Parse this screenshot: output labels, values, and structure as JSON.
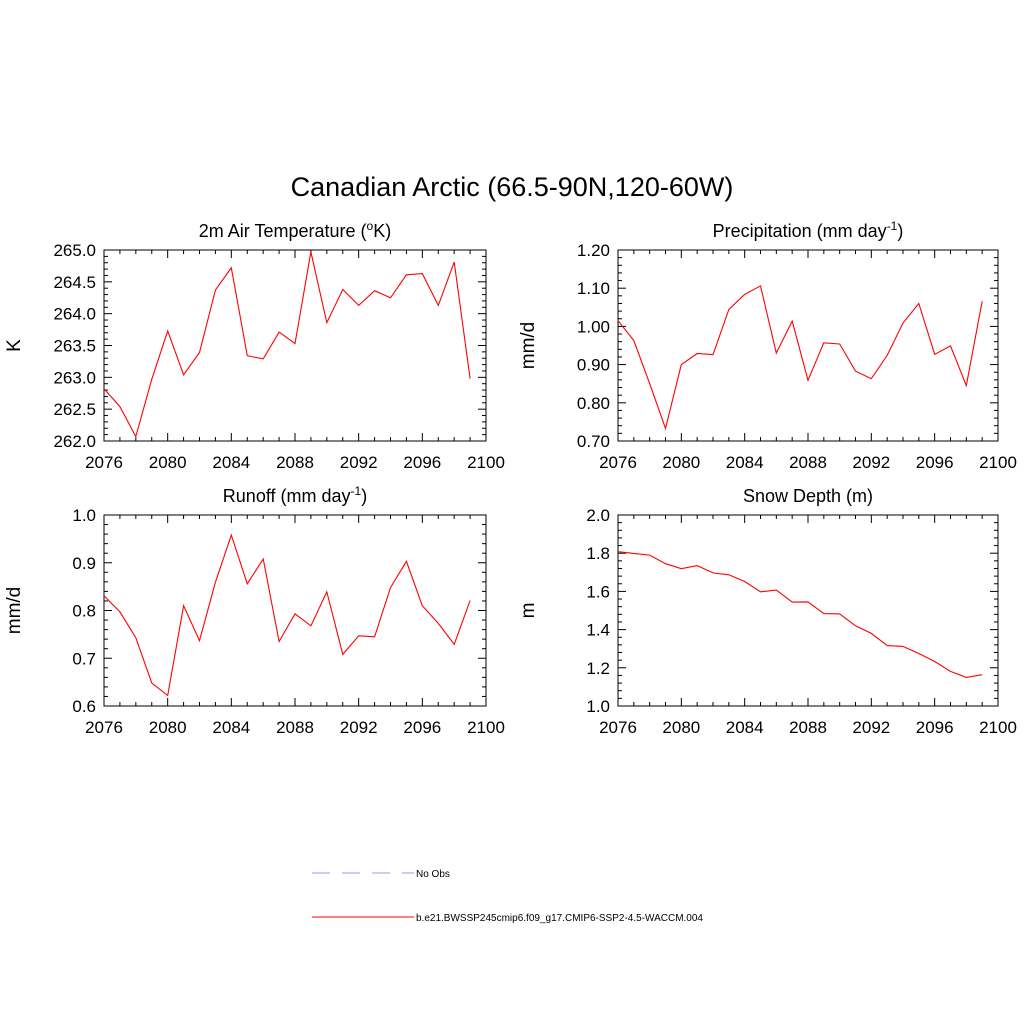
{
  "title": "Canadian Arctic (66.5-90N,120-60W)",
  "chart_data": [
    {
      "type": "line",
      "title_parts": [
        "2m Air Temperature (",
        "o",
        "K)"
      ],
      "ylabel": "K",
      "xlim": [
        2076,
        2100
      ],
      "ylim": [
        262.0,
        265.0
      ],
      "xticks": [
        "2076",
        "2080",
        "2084",
        "2088",
        "2092",
        "2096",
        "2100"
      ],
      "yticks": [
        "262.0",
        "262.5",
        "263.0",
        "263.5",
        "264.0",
        "264.5",
        "265.0"
      ],
      "series": [
        {
          "x": [
            2076,
            2077,
            2078,
            2079,
            2080,
            2081,
            2082,
            2083,
            2084,
            2085,
            2086,
            2087,
            2088,
            2089,
            2090,
            2091,
            2092,
            2093,
            2094,
            2095,
            2096,
            2097,
            2098,
            2099
          ],
          "y": [
            262.82,
            262.54,
            262.07,
            262.97,
            263.73,
            263.04,
            263.39,
            264.37,
            264.72,
            263.34,
            263.29,
            263.71,
            263.53,
            264.97,
            263.86,
            264.38,
            264.13,
            264.36,
            264.25,
            264.61,
            264.63,
            264.13,
            264.81,
            262.98
          ]
        }
      ]
    },
    {
      "type": "line",
      "title_parts": [
        "Precipitation (mm day",
        "-1",
        ")"
      ],
      "ylabel": "mm/d",
      "xlim": [
        2076,
        2100
      ],
      "ylim": [
        0.7,
        1.2
      ],
      "xticks": [
        "2076",
        "2080",
        "2084",
        "2088",
        "2092",
        "2096",
        "2100"
      ],
      "yticks": [
        "0.70",
        "0.80",
        "0.90",
        "1.00",
        "1.10",
        "1.20"
      ],
      "series": [
        {
          "x": [
            2076,
            2077,
            2078,
            2079,
            2080,
            2081,
            2082,
            2083,
            2084,
            2085,
            2086,
            2087,
            2088,
            2089,
            2090,
            2091,
            2092,
            2093,
            2094,
            2095,
            2096,
            2097,
            2098,
            2099
          ],
          "y": [
            1.015,
            0.963,
            0.85,
            0.733,
            0.9,
            0.929,
            0.926,
            1.044,
            1.084,
            1.106,
            0.93,
            1.014,
            0.859,
            0.957,
            0.954,
            0.883,
            0.863,
            0.924,
            1.009,
            1.06,
            0.927,
            0.949,
            0.845,
            1.066
          ]
        }
      ]
    },
    {
      "type": "line",
      "title_parts": [
        "Runoff (mm day",
        "-1",
        ")"
      ],
      "ylabel": "mm/d",
      "xlim": [
        2076,
        2100
      ],
      "ylim": [
        0.6,
        1.0
      ],
      "xticks": [
        "2076",
        "2080",
        "2084",
        "2088",
        "2092",
        "2096",
        "2100"
      ],
      "yticks": [
        "0.6",
        "0.7",
        "0.8",
        "0.9",
        "1.0"
      ],
      "series": [
        {
          "x": [
            2076,
            2077,
            2078,
            2079,
            2080,
            2081,
            2082,
            2083,
            2084,
            2085,
            2086,
            2087,
            2088,
            2089,
            2090,
            2091,
            2092,
            2093,
            2094,
            2095,
            2096,
            2097,
            2098,
            2099
          ],
          "y": [
            0.831,
            0.797,
            0.743,
            0.648,
            0.622,
            0.81,
            0.737,
            0.859,
            0.958,
            0.856,
            0.908,
            0.735,
            0.793,
            0.768,
            0.839,
            0.708,
            0.747,
            0.745,
            0.848,
            0.903,
            0.81,
            0.773,
            0.729,
            0.821
          ]
        }
      ]
    },
    {
      "type": "line",
      "title_parts": [
        "Snow Depth (m)",
        "",
        ""
      ],
      "ylabel": "m",
      "xlim": [
        2076,
        2100
      ],
      "ylim": [
        1.0,
        2.0
      ],
      "xticks": [
        "2076",
        "2080",
        "2084",
        "2088",
        "2092",
        "2096",
        "2100"
      ],
      "yticks": [
        "1.0",
        "1.2",
        "1.4",
        "1.6",
        "1.8",
        "2.0"
      ],
      "series": [
        {
          "x": [
            2076,
            2077,
            2078,
            2079,
            2080,
            2081,
            2082,
            2083,
            2084,
            2085,
            2086,
            2087,
            2088,
            2089,
            2090,
            2091,
            2092,
            2093,
            2094,
            2095,
            2096,
            2097,
            2098,
            2099
          ],
          "y": [
            1.808,
            1.799,
            1.79,
            1.745,
            1.719,
            1.735,
            1.697,
            1.687,
            1.652,
            1.598,
            1.607,
            1.544,
            1.545,
            1.484,
            1.482,
            1.42,
            1.38,
            1.316,
            1.312,
            1.275,
            1.233,
            1.181,
            1.15,
            1.164
          ]
        }
      ]
    }
  ],
  "legend": [
    {
      "label": "No Obs",
      "color": "#b0b0e6",
      "style": "dashed"
    },
    {
      "label": "b.e21.BWSSP245cmip6.f09_g17.CMIP6-SSP2-4.5-WACCM.004",
      "color": "#ff0000",
      "style": "solid"
    }
  ]
}
